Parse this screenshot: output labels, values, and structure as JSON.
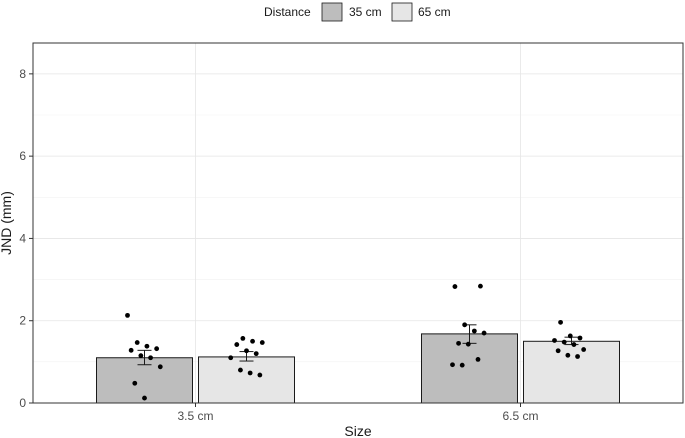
{
  "chart_data": {
    "type": "bar",
    "title": "",
    "xlabel": "Size",
    "ylabel": "JND (mm)",
    "ylim": [
      0,
      8.75
    ],
    "yticks": [
      0,
      2,
      4,
      6,
      8
    ],
    "ytick_labels": [
      "0",
      "2",
      "4",
      "6",
      "8"
    ],
    "grid": true,
    "legend": {
      "title": "Distance",
      "placement": "top"
    },
    "categories": [
      "3.5 cm",
      "6.5 cm"
    ],
    "series": [
      {
        "name": "35 cm",
        "color": "#bdbdbd",
        "values": [
          1.1,
          1.68
        ],
        "error": [
          [
            0.93,
            1.28
          ],
          [
            1.45,
            1.9
          ]
        ],
        "points": [
          [
            2.13,
            1.47,
            1.38,
            1.32,
            1.28,
            1.15,
            1.1,
            0.88,
            0.48,
            0.12
          ],
          [
            2.84,
            2.83,
            1.9,
            1.75,
            1.7,
            1.45,
            1.43,
            1.06,
            0.93,
            0.92
          ]
        ]
      },
      {
        "name": "65 cm",
        "color": "#e6e6e6",
        "values": [
          1.12,
          1.5
        ],
        "error": [
          [
            1.02,
            1.25
          ],
          [
            1.42,
            1.6
          ]
        ],
        "points": [
          [
            1.57,
            1.5,
            1.47,
            1.42,
            1.27,
            1.2,
            1.1,
            0.8,
            0.73,
            0.68
          ],
          [
            1.96,
            1.63,
            1.58,
            1.52,
            1.48,
            1.42,
            1.3,
            1.27,
            1.16,
            1.13
          ]
        ]
      }
    ]
  }
}
